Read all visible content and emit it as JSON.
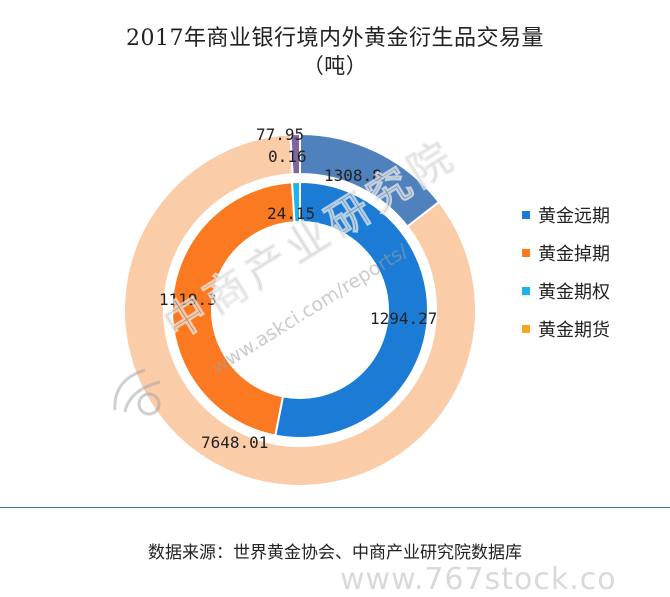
{
  "chart_data": {
    "type": "pie",
    "title": "2017年商业银行境内外黄金衍生品交易量",
    "subtitle": "（吨）",
    "legend": [
      "黄金远期",
      "黄金掉期",
      "黄金期权",
      "黄金期货"
    ],
    "legend_position": "right",
    "rings": [
      {
        "ring": "inner",
        "slices": [
          {
            "name": "黄金远期",
            "value": 1294.27,
            "color": "#1c7cd5"
          },
          {
            "name": "黄金掉期",
            "value": 1119.3,
            "color": "#fb7a21"
          },
          {
            "name": "黄金期权",
            "value": 24.15,
            "color": "#1fb3ee"
          }
        ]
      },
      {
        "ring": "outer",
        "slices": [
          {
            "name": "黄金远期",
            "value": 1308.8,
            "color": "#4f81bd"
          },
          {
            "name": "黄金期货",
            "value": 7648.01,
            "color": "#fbcca8"
          },
          {
            "name": "黄金期权",
            "value": 0.16,
            "color": "#6fa8dc"
          },
          {
            "name": "黄金掉期",
            "value": 77.95,
            "color": "#8064a2"
          }
        ]
      }
    ],
    "data_labels": [
      "1294.27",
      "1119.3",
      "24.15",
      "1308.8",
      "7648.01",
      "0.16",
      "77.95"
    ]
  },
  "legend_colors": [
    "#1c7cd5",
    "#fb7a21",
    "#1fb3ee",
    "#f5a623"
  ],
  "source_text": "数据来源：世界黄金协会、中商产业研究院数据库",
  "watermarks": {
    "brand": "中商产业研究院",
    "url": "www.askci.com/reports/",
    "site": "www.767stock.co"
  }
}
